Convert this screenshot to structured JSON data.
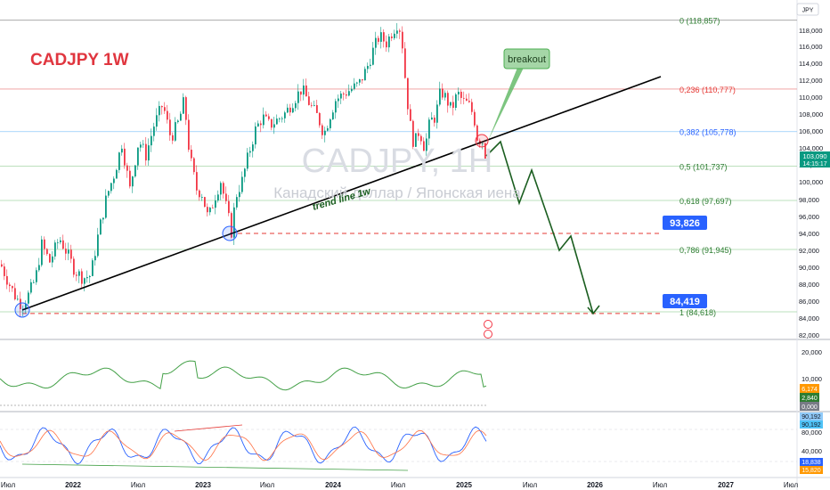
{
  "symbol_title": "CADJPY 1W",
  "watermark": {
    "symbol": "CADJPY, 1Н",
    "description": "Канадский доллар / Японская иена"
  },
  "currency_label": "JPY",
  "trend_line_label": "trend line 1w",
  "breakout_label": "breakout",
  "colors": {
    "up": "#089981",
    "down": "#f23645",
    "title": "#e0363f",
    "trend": "#000000",
    "projection": "#1b5e20",
    "fib": "#2e7d32",
    "fib_blue": "#2962ff"
  },
  "price_axis": {
    "ticks": [
      "118,000",
      "116,000",
      "114,000",
      "112,000",
      "110,000",
      "108,000",
      "106,000",
      "104,000",
      "102,000",
      "100,000",
      "98,000",
      "96,000",
      "94,000",
      "92,000",
      "90,000",
      "88,000",
      "86,000",
      "84,000",
      "82,000"
    ]
  },
  "current_price": {
    "value": "103,090",
    "countdown": "14:15:17"
  },
  "targets": [
    {
      "label": "93,826"
    },
    {
      "label": "84,419"
    }
  ],
  "time_axis": {
    "labels": [
      "Июл",
      "2022",
      "Июл",
      "2023",
      "Июл",
      "2024",
      "Июл",
      "2025",
      "Июл",
      "2026",
      "Июл",
      "2027",
      "Июл"
    ]
  },
  "chart_data": {
    "type": "candlestick",
    "title": "CADJPY 1W",
    "ylim": [
      81.5,
      119.5
    ],
    "fib_levels": [
      {
        "ratio": "0",
        "price": 118.857,
        "label": "0 (118,857)"
      },
      {
        "ratio": "0.236",
        "price": 110.777,
        "label": "0,236 (110,777)"
      },
      {
        "ratio": "0.382",
        "price": 105.778,
        "label": "0,382 (105,778)"
      },
      {
        "ratio": "0.5",
        "price": 101.737,
        "label": "0,5 (101,737)"
      },
      {
        "ratio": "0.618",
        "price": 97.697,
        "label": "0,618 (97,697)"
      },
      {
        "ratio": "0.786",
        "price": 91.945,
        "label": "0,786 (91,945)"
      },
      {
        "ratio": "1",
        "price": 84.618,
        "label": "1 (84,618)"
      }
    ],
    "support_levels": [
      93.826,
      84.419
    ],
    "close_path": [
      [
        0,
        90.2
      ],
      [
        9,
        88
      ],
      [
        17,
        86.3
      ],
      [
        24,
        85.4
      ],
      [
        31,
        86.6
      ],
      [
        39,
        88.5
      ],
      [
        46,
        92.5
      ],
      [
        55,
        90.5
      ],
      [
        66,
        93.3
      ],
      [
        75,
        91.4
      ],
      [
        83,
        89.5
      ],
      [
        92,
        88.6
      ],
      [
        101,
        88.9
      ],
      [
        110,
        94
      ],
      [
        119,
        98.2
      ],
      [
        128,
        101
      ],
      [
        136,
        104.4
      ],
      [
        145,
        99
      ],
      [
        155,
        104.8
      ],
      [
        163,
        103
      ],
      [
        172,
        106.5
      ],
      [
        182,
        109
      ],
      [
        191,
        105
      ],
      [
        200,
        107
      ],
      [
        206,
        109.5
      ],
      [
        212,
        103
      ],
      [
        220,
        99
      ],
      [
        226,
        98.5
      ],
      [
        233,
        95.5
      ],
      [
        240,
        98
      ],
      [
        247,
        100
      ],
      [
        253,
        97
      ],
      [
        259,
        94
      ],
      [
        264,
        98.2
      ],
      [
        271,
        100
      ],
      [
        278,
        103
      ],
      [
        286,
        106
      ],
      [
        294,
        107.5
      ],
      [
        302,
        106.5
      ],
      [
        311,
        107.2
      ],
      [
        320,
        108
      ],
      [
        329,
        109.5
      ],
      [
        338,
        110.8
      ],
      [
        347,
        109
      ],
      [
        356,
        107.5
      ],
      [
        363,
        105.5
      ],
      [
        369,
        107.5
      ],
      [
        376,
        109.5
      ],
      [
        385,
        110.2
      ],
      [
        394,
        110.8
      ],
      [
        402,
        111.3
      ],
      [
        411,
        113.2
      ],
      [
        418,
        115.3
      ],
      [
        425,
        117
      ],
      [
        433,
        116.2
      ],
      [
        440,
        117.6
      ],
      [
        446,
        118.6
      ],
      [
        450,
        117.2
      ],
      [
        455,
        111
      ],
      [
        459,
        107
      ],
      [
        464,
        104.2
      ],
      [
        470,
        106
      ],
      [
        476,
        103.8
      ],
      [
        482,
        107
      ],
      [
        488,
        107.5
      ],
      [
        494,
        110.6
      ],
      [
        500,
        109.7
      ],
      [
        506,
        108.3
      ],
      [
        513,
        110.3
      ],
      [
        519,
        109.3
      ],
      [
        525,
        109
      ],
      [
        531,
        107.7
      ],
      [
        536,
        104.5
      ],
      [
        540,
        105.2
      ],
      [
        544,
        103.1
      ]
    ],
    "rsi": {
      "yticks": [
        "20,000",
        "10,000"
      ],
      "labels": [
        "6,174",
        "2,840",
        "0,000"
      ]
    },
    "stoch": {
      "yticks": [
        "80,000",
        "40,000"
      ],
      "labels": [
        "90,192",
        "90,192",
        "18,838",
        "15,820"
      ]
    }
  }
}
